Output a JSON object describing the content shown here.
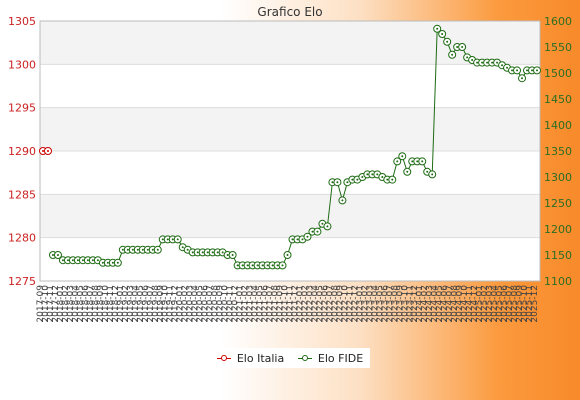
{
  "chart_data": {
    "type": "line",
    "title": "Grafico Elo",
    "y_left": {
      "ylim": [
        1275,
        1305
      ],
      "ticks": [
        1275,
        1280,
        1285,
        1290,
        1295,
        1300,
        1305
      ]
    },
    "y_right": {
      "ylim": [
        1100,
        1600
      ],
      "ticks": [
        1100,
        1150,
        1200,
        1250,
        1300,
        1350,
        1400,
        1450,
        1500,
        1550,
        1600
      ]
    },
    "x_tick_labels": [
      "2017-09",
      "2017-10",
      "2017-11",
      "2017-12",
      "2018-01",
      "2018-02",
      "2018-03",
      "2018-04",
      "2018-05",
      "2018-06",
      "2018-07",
      "2018-08",
      "2018-09",
      "2018-10",
      "2018-11",
      "2018-12",
      "2019-01",
      "2019-02",
      "2019-03",
      "2019-04",
      "2019-05",
      "2019-06",
      "2019-07",
      "2019-08",
      "2019-09",
      "2019-10",
      "2019-11",
      "2019-12",
      "2020-01",
      "2020-02",
      "2020-03",
      "2020-04",
      "2020-05",
      "2020-06",
      "2020-07",
      "2020-08",
      "2020-09",
      "2020-10",
      "2020-11",
      "2020-12",
      "2021-01",
      "2021-02",
      "2021-03",
      "2021-04",
      "2021-05",
      "2021-06",
      "2021-07",
      "2021-08",
      "2021-09",
      "2021-10",
      "2021-11",
      "2021-12",
      "2022-01",
      "2022-02",
      "2022-03",
      "2022-04",
      "2022-05",
      "2022-06",
      "2022-07",
      "2022-08",
      "2022-09",
      "2022-10",
      "2022-11",
      "2022-12",
      "2023-01",
      "2023-02",
      "2023-03",
      "2023-04",
      "2023-05",
      "2023-06",
      "2023-07",
      "2023-08",
      "2023-09",
      "2023-10",
      "2023-11",
      "2023-12",
      "2024-01",
      "2024-02",
      "2024-03",
      "2024-04",
      "2024-05",
      "2024-06",
      "2024-07",
      "2024-08",
      "2024-09",
      "2024-10",
      "2024-11",
      "2024-12",
      "2025-01",
      "2025-02",
      "2025-03",
      "2025-04",
      "2025-05",
      "2025-06",
      "2025-07",
      "2025-08",
      "2025-09",
      "2025-10",
      "2025-11",
      "2025-12"
    ],
    "grid": true,
    "legend_position": "bottom-center",
    "series": [
      {
        "name": "Elo Italia",
        "axis": "left",
        "color": "#cc0000",
        "x": [
          "2017-09",
          "2017-10"
        ],
        "values": [
          1290,
          1290
        ]
      },
      {
        "name": "Elo FIDE",
        "axis": "right",
        "color": "#1e6b14",
        "x": [
          "2017-11",
          "2017-12",
          "2018-01",
          "2018-02",
          "2018-03",
          "2018-04",
          "2018-05",
          "2018-06",
          "2018-07",
          "2018-08",
          "2018-09",
          "2018-10",
          "2018-11",
          "2018-12",
          "2019-01",
          "2019-02",
          "2019-03",
          "2019-04",
          "2019-05",
          "2019-06",
          "2019-07",
          "2019-08",
          "2019-09",
          "2019-10",
          "2019-11",
          "2019-12",
          "2020-01",
          "2020-02",
          "2020-03",
          "2020-04",
          "2020-05",
          "2020-06",
          "2020-07",
          "2020-08",
          "2020-09",
          "2020-10",
          "2020-11",
          "2020-12",
          "2021-01",
          "2021-02",
          "2021-03",
          "2021-04",
          "2021-05",
          "2021-06",
          "2021-07",
          "2021-08",
          "2021-09",
          "2021-10",
          "2021-11",
          "2021-12",
          "2022-01",
          "2022-02",
          "2022-03",
          "2022-04",
          "2022-05",
          "2022-06",
          "2022-07",
          "2022-08",
          "2022-09",
          "2022-10",
          "2022-11",
          "2022-12",
          "2023-01",
          "2023-02",
          "2023-03",
          "2023-04",
          "2023-05",
          "2023-06",
          "2023-07",
          "2023-08",
          "2023-09",
          "2023-10",
          "2023-11",
          "2023-12",
          "2024-01",
          "2024-02",
          "2024-03",
          "2024-04",
          "2024-05",
          "2024-06",
          "2024-07",
          "2024-08",
          "2024-09",
          "2024-10",
          "2024-11",
          "2024-12",
          "2025-01",
          "2025-02",
          "2025-03",
          "2025-04",
          "2025-05",
          "2025-06",
          "2025-07",
          "2025-08",
          "2025-09",
          "2025-10",
          "2025-11",
          "2025-12"
        ],
        "values": [
          1150,
          1150,
          1140,
          1140,
          1140,
          1140,
          1140,
          1140,
          1140,
          1140,
          1135,
          1135,
          1135,
          1135,
          1160,
          1160,
          1160,
          1160,
          1160,
          1160,
          1160,
          1160,
          1180,
          1180,
          1180,
          1180,
          1165,
          1160,
          1155,
          1155,
          1155,
          1155,
          1155,
          1155,
          1155,
          1150,
          1150,
          1130,
          1130,
          1130,
          1130,
          1130,
          1130,
          1130,
          1130,
          1130,
          1130,
          1150,
          1180,
          1180,
          1180,
          1185,
          1195,
          1195,
          1210,
          1205,
          1290,
          1290,
          1255,
          1290,
          1295,
          1295,
          1300,
          1305,
          1305,
          1305,
          1300,
          1295,
          1295,
          1330,
          1340,
          1310,
          1330,
          1330,
          1330,
          1310,
          1305,
          1585,
          1575,
          1560,
          1535,
          1550,
          1550,
          1530,
          1525,
          1520,
          1520,
          1520,
          1520,
          1520,
          1515,
          1510,
          1505,
          1505,
          1490,
          1505,
          1505,
          1505
        ]
      }
    ]
  }
}
